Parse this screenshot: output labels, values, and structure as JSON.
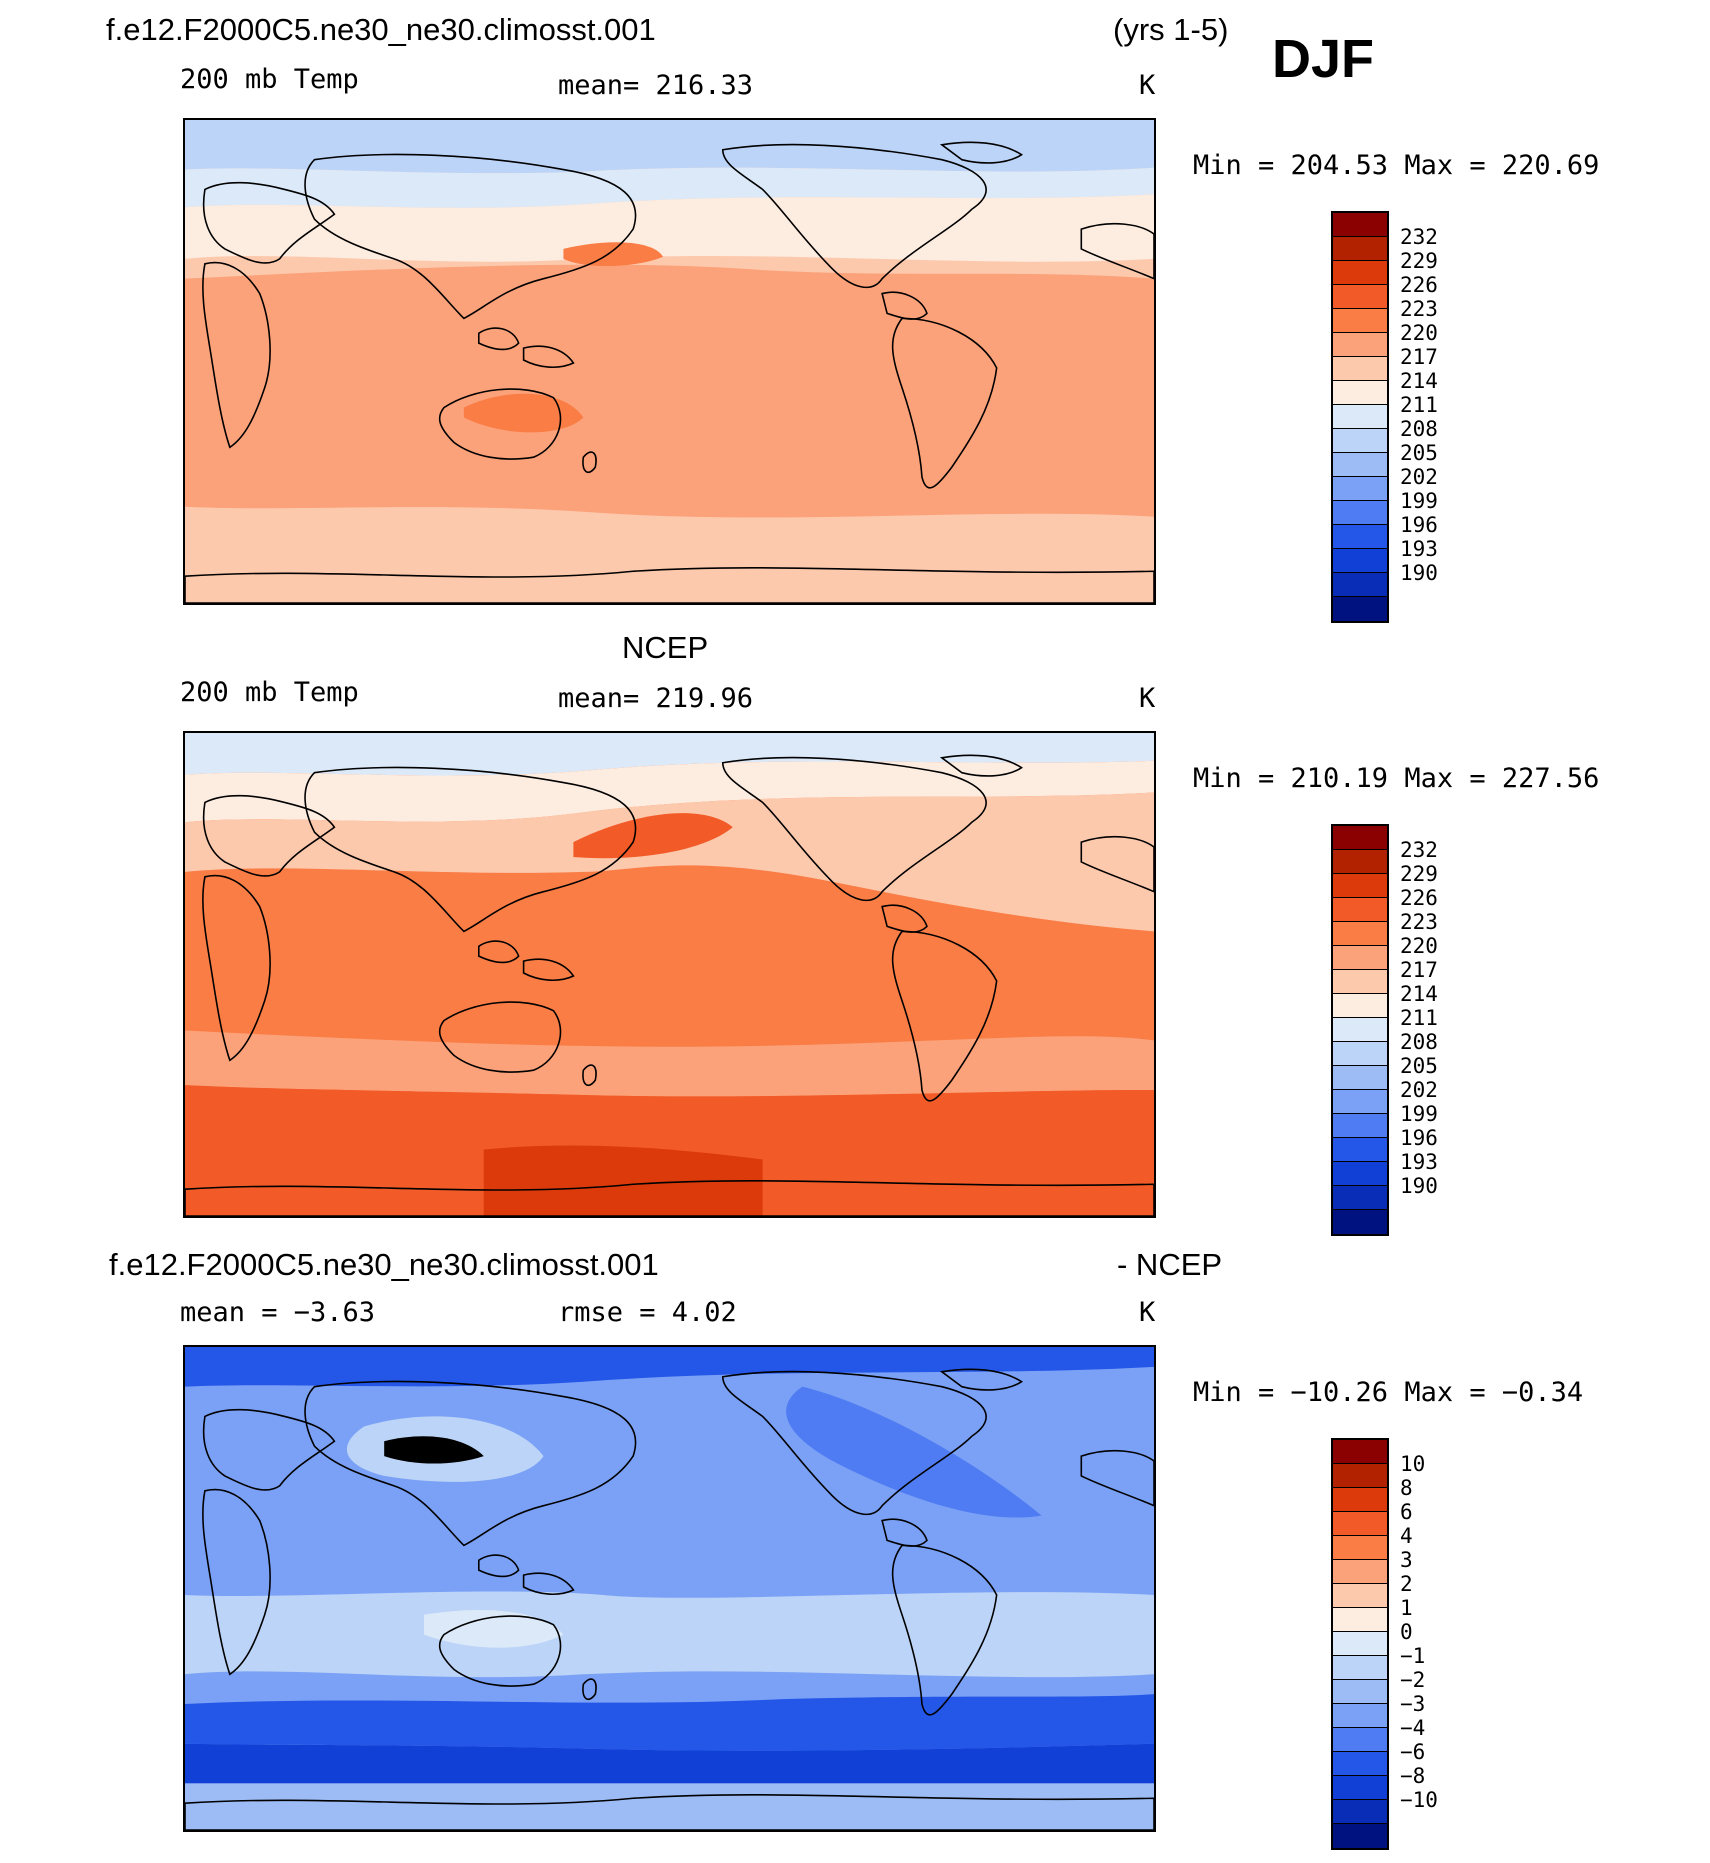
{
  "figure": {
    "season": "DJF",
    "case_title": "f.e12.F2000C5.ne30_ne30.climosst.001",
    "years": "(yrs 1-5)"
  },
  "panels": [
    {
      "id": "model",
      "heading": "",
      "left_label": "200 mb Temp",
      "center_label": "mean= 216.33",
      "units": "K",
      "minmax": "Min = 204.53 Max = 220.69"
    },
    {
      "id": "obs",
      "heading": "NCEP",
      "left_label": "200 mb Temp",
      "center_label": "mean= 219.96",
      "units": "K",
      "minmax": "Min = 210.19 Max = 227.56"
    },
    {
      "id": "diff",
      "heading_left": "f.e12.F2000C5.ne30_ne30.climosst.001",
      "heading_right": "- NCEP",
      "left_label": "mean =   −3.63",
      "center_label": "rmse =    4.02",
      "units": "K",
      "minmax": "Min = −10.26 Max =  −0.34"
    }
  ],
  "colorbars": {
    "temp": {
      "labels": [
        "232",
        "229",
        "226",
        "223",
        "220",
        "217",
        "214",
        "211",
        "208",
        "205",
        "202",
        "199",
        "196",
        "193",
        "190"
      ],
      "colors": [
        "#8b0000",
        "#b22200",
        "#dc3a0a",
        "#f25a28",
        "#fa7d46",
        "#fca27a",
        "#fdc9ad",
        "#fdece0",
        "#dbe9f8",
        "#bcd4f7",
        "#9dbcf6",
        "#7aa1f5",
        "#4f7cf2",
        "#2456e8",
        "#1040d6",
        "#0a2db8",
        "#00127f"
      ]
    },
    "diff": {
      "labels": [
        "10",
        "8",
        "6",
        "4",
        "3",
        "2",
        "1",
        "0",
        "−1",
        "−2",
        "−3",
        "−4",
        "−6",
        "−8",
        "−10"
      ],
      "colors": [
        "#8b0000",
        "#b22200",
        "#dc3a0a",
        "#f25a28",
        "#fa7d46",
        "#fca27a",
        "#fdc9ad",
        "#fdece0",
        "#dbe9f8",
        "#bcd4f7",
        "#9dbcf6",
        "#7aa1f5",
        "#4f7cf2",
        "#2456e8",
        "#1040d6",
        "#0a2db8",
        "#00127f"
      ]
    }
  },
  "map_fields": {
    "model": {
      "base": "#fdc9ad",
      "bands": [
        "#bcd4f7",
        "#dbe9f8",
        "#fdece0",
        "#fca27a",
        "#fa7d46"
      ]
    },
    "obs": {
      "base": "#fa7d46",
      "bands": [
        "#dbe9f8",
        "#fdece0",
        "#fdc9ad",
        "#fca27a",
        "#f25a28",
        "#dc3a0a"
      ]
    },
    "diff": {
      "base": "#7aa1f5",
      "bands": [
        "#4f7cf2",
        "#2456e8",
        "#1040d6",
        "#0a2db8",
        "#9dbcf6",
        "#bcd4f7",
        "#dbe9f8"
      ]
    }
  }
}
